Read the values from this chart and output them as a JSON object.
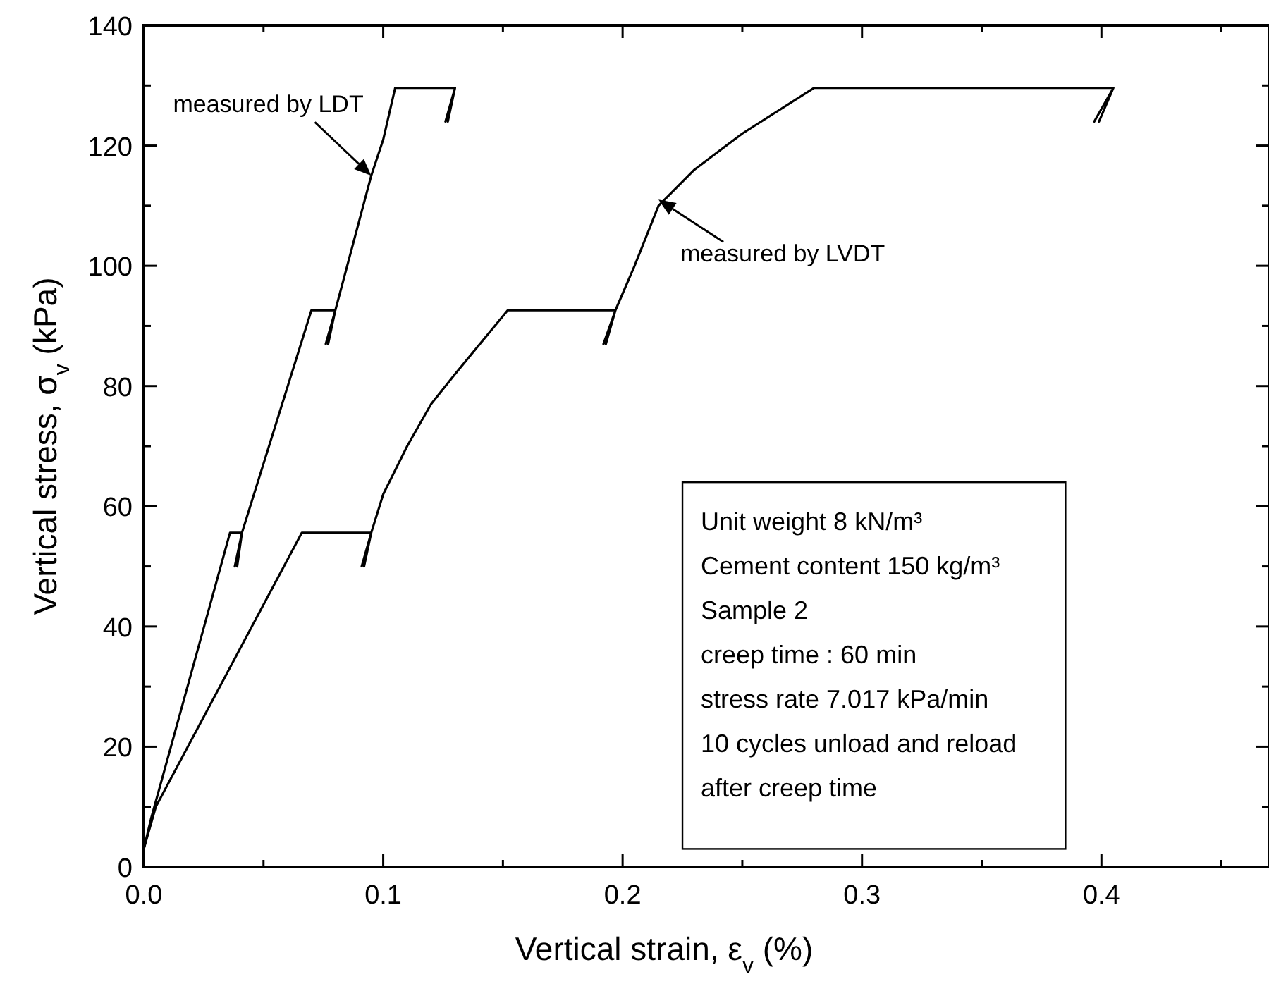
{
  "chart_data": {
    "type": "line",
    "xlabel": "Vertical strain, ε$_{v}$ (%)",
    "ylabel": "Vertical stress, σ$_{v}$ (kPa)",
    "xlim": [
      0,
      0.47
    ],
    "ylim": [
      0,
      140
    ],
    "xticks": [
      {
        "value": 0,
        "label": "0.0"
      },
      {
        "value": 0.05,
        "label": null
      },
      {
        "value": 0.1,
        "label": "0.1"
      },
      {
        "value": 0.15,
        "label": null
      },
      {
        "value": 0.2,
        "label": "0.2"
      },
      {
        "value": 0.25,
        "label": null
      },
      {
        "value": 0.3,
        "label": "0.3"
      },
      {
        "value": 0.35,
        "label": null
      },
      {
        "value": 0.4,
        "label": "0.4"
      },
      {
        "value": 0.45,
        "label": null
      }
    ],
    "yticks": [
      0,
      {
        "value": 10,
        "label": null
      },
      20,
      {
        "value": 30,
        "label": null
      },
      40,
      {
        "value": 50,
        "label": null
      },
      60,
      {
        "value": 70,
        "label": null
      },
      80,
      {
        "value": 90,
        "label": null
      },
      100,
      {
        "value": 110,
        "label": null
      },
      120,
      {
        "value": 130,
        "label": null
      },
      140
    ],
    "grid": false,
    "marker": "none",
    "line_style": "solid",
    "series": [
      {
        "color": "#000000",
        "x": [
          0,
          0.003,
          0.036,
          0.041,
          0.038,
          0.041,
          0.039,
          0.041,
          0.07,
          0.08,
          0.076,
          0.08,
          0.077,
          0.08,
          0.095,
          0.1,
          0.105,
          0.13,
          0.126,
          0.13,
          0.127,
          0.13
        ],
        "values": [
          3,
          8,
          55.6,
          55.6,
          50,
          55.6,
          50,
          55.6,
          92.6,
          92.6,
          87,
          92.6,
          87,
          92.6,
          115,
          121,
          129.6,
          129.6,
          124,
          129.6,
          124,
          129.6
        ]
      },
      {
        "color": "#000000",
        "x": [
          0,
          0.005,
          0.066,
          0.095,
          0.091,
          0.095,
          0.092,
          0.095,
          0.1,
          0.11,
          0.12,
          0.13,
          0.152,
          0.197,
          0.192,
          0.197,
          0.193,
          0.197,
          0.205,
          0.215,
          0.23,
          0.25,
          0.28,
          0.405,
          0.397,
          0.405,
          0.399,
          0.405
        ],
        "values": [
          3,
          10,
          55.6,
          55.6,
          50,
          55.6,
          50,
          55.6,
          62,
          70,
          77,
          82,
          92.6,
          92.6,
          87,
          92.6,
          87,
          92.6,
          100,
          110,
          116,
          122,
          129.6,
          129.6,
          124,
          129.6,
          124,
          129.6
        ]
      }
    ],
    "annotations": [
      {
        "text": "measured by LDT",
        "x": 0.095,
        "y": 115
      },
      {
        "text": "measured by LVDT",
        "x": 0.215,
        "y": 111
      },
      "Unit weight 8 kN/m³",
      "Cement content 150 kg/m³",
      "Sample 2",
      "creep time : 60 min",
      "stress rate 7.017 kPa/min",
      "10 cycles unload and reload",
      "after creep time"
    ]
  }
}
